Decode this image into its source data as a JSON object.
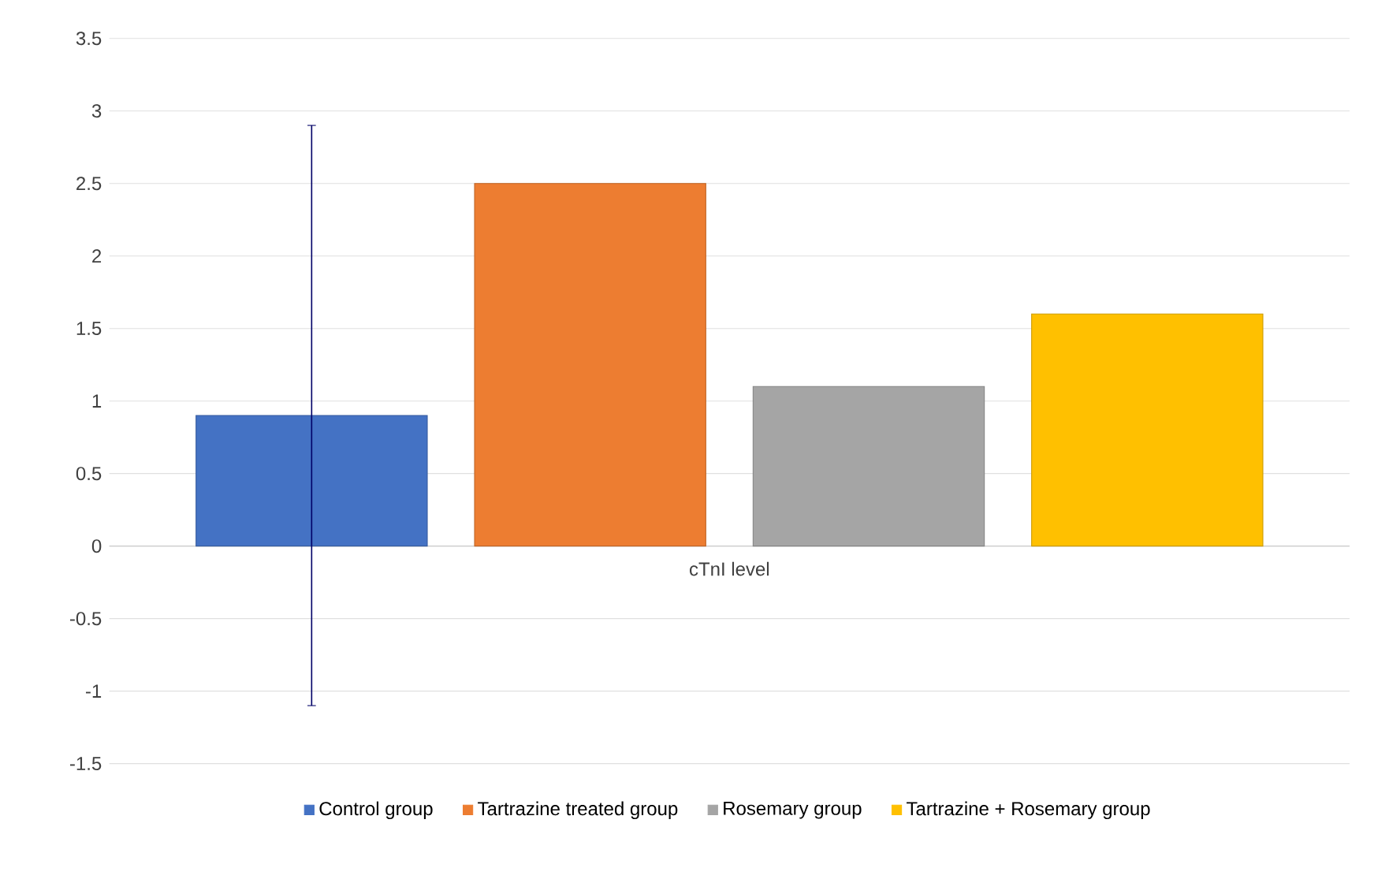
{
  "chart_data": {
    "type": "bar",
    "categories": [
      "cTnI level"
    ],
    "series": [
      {
        "name": "Control group",
        "color": "#4472c4",
        "values": [
          0.9
        ],
        "errors": [
          2.0
        ]
      },
      {
        "name": "Tartrazine treated group",
        "color": "#ed7d31",
        "values": [
          2.5
        ]
      },
      {
        "name": "Rosemary group",
        "color": "#a5a5a5",
        "values": [
          1.1
        ]
      },
      {
        "name": "Tartrazine + Rosemary group",
        "color": "#ffc000",
        "values": [
          1.6
        ]
      }
    ],
    "ylim": [
      -1.5,
      3.5
    ],
    "yticks": [
      -1.5,
      -1,
      -0.5,
      0,
      0.5,
      1,
      1.5,
      2,
      2.5,
      3,
      3.5
    ],
    "grid": "y",
    "legend": "bottom"
  }
}
